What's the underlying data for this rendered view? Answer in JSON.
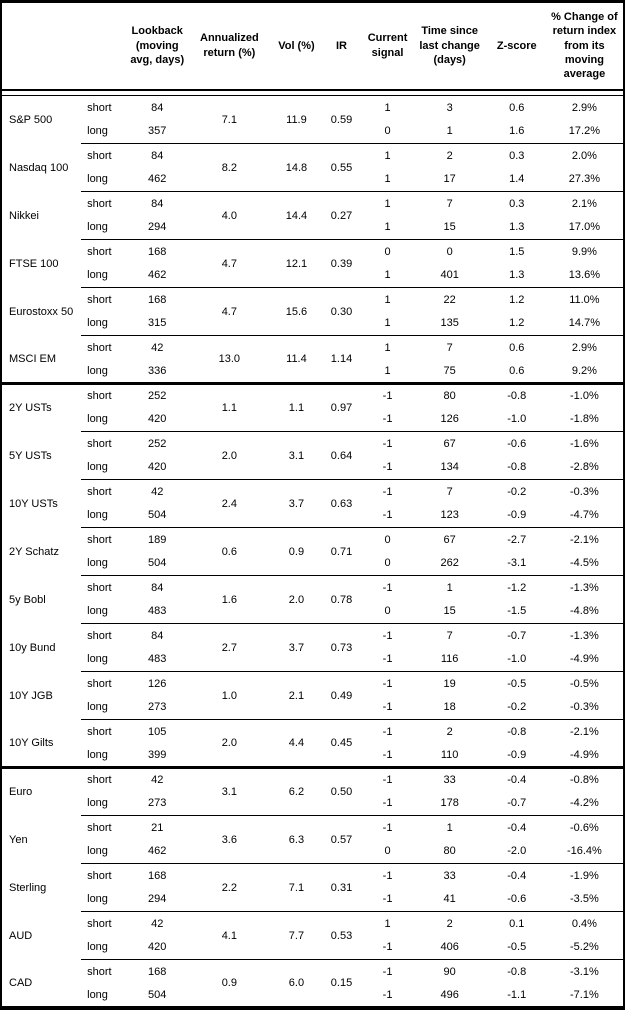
{
  "chart_data": {
    "type": "table",
    "columns": [
      "",
      "",
      "Lookback (moving avg, days)",
      "Annualized return (%)",
      "Vol (%)",
      "IR",
      "Current signal",
      "Time since last change (days)",
      "Z-score",
      "% Change of return index from its moving average"
    ],
    "sections": [
      {
        "assets": [
          {
            "name": "S&P 500",
            "annualized_return": "7.1",
            "vol": "11.9",
            "ir": "0.59",
            "rows": [
              {
                "horizon": "short",
                "lookback": "84",
                "signal": "1",
                "time_since_change": "3",
                "z_score": "0.6",
                "pct_change": "2.9%"
              },
              {
                "horizon": "long",
                "lookback": "357",
                "signal": "0",
                "time_since_change": "1",
                "z_score": "1.6",
                "pct_change": "17.2%"
              }
            ]
          },
          {
            "name": "Nasdaq 100",
            "annualized_return": "8.2",
            "vol": "14.8",
            "ir": "0.55",
            "rows": [
              {
                "horizon": "short",
                "lookback": "84",
                "signal": "1",
                "time_since_change": "2",
                "z_score": "0.3",
                "pct_change": "2.0%"
              },
              {
                "horizon": "long",
                "lookback": "462",
                "signal": "1",
                "time_since_change": "17",
                "z_score": "1.4",
                "pct_change": "27.3%"
              }
            ]
          },
          {
            "name": "Nikkei",
            "annualized_return": "4.0",
            "vol": "14.4",
            "ir": "0.27",
            "rows": [
              {
                "horizon": "short",
                "lookback": "84",
                "signal": "1",
                "time_since_change": "7",
                "z_score": "0.3",
                "pct_change": "2.1%"
              },
              {
                "horizon": "long",
                "lookback": "294",
                "signal": "1",
                "time_since_change": "15",
                "z_score": "1.3",
                "pct_change": "17.0%"
              }
            ]
          },
          {
            "name": "FTSE 100",
            "annualized_return": "4.7",
            "vol": "12.1",
            "ir": "0.39",
            "rows": [
              {
                "horizon": "short",
                "lookback": "168",
                "signal": "0",
                "time_since_change": "0",
                "z_score": "1.5",
                "pct_change": "9.9%"
              },
              {
                "horizon": "long",
                "lookback": "462",
                "signal": "1",
                "time_since_change": "401",
                "z_score": "1.3",
                "pct_change": "13.6%"
              }
            ]
          },
          {
            "name": "Eurostoxx 50",
            "annualized_return": "4.7",
            "vol": "15.6",
            "ir": "0.30",
            "rows": [
              {
                "horizon": "short",
                "lookback": "168",
                "signal": "1",
                "time_since_change": "22",
                "z_score": "1.2",
                "pct_change": "11.0%"
              },
              {
                "horizon": "long",
                "lookback": "315",
                "signal": "1",
                "time_since_change": "135",
                "z_score": "1.2",
                "pct_change": "14.7%"
              }
            ]
          },
          {
            "name": "MSCI EM",
            "annualized_return": "13.0",
            "vol": "11.4",
            "ir": "1.14",
            "rows": [
              {
                "horizon": "short",
                "lookback": "42",
                "signal": "1",
                "time_since_change": "7",
                "z_score": "0.6",
                "pct_change": "2.9%"
              },
              {
                "horizon": "long",
                "lookback": "336",
                "signal": "1",
                "time_since_change": "75",
                "z_score": "0.6",
                "pct_change": "9.2%"
              }
            ]
          }
        ]
      },
      {
        "assets": [
          {
            "name": "2Y USTs",
            "annualized_return": "1.1",
            "vol": "1.1",
            "ir": "0.97",
            "rows": [
              {
                "horizon": "short",
                "lookback": "252",
                "signal": "-1",
                "time_since_change": "80",
                "z_score": "-0.8",
                "pct_change": "-1.0%"
              },
              {
                "horizon": "long",
                "lookback": "420",
                "signal": "-1",
                "time_since_change": "126",
                "z_score": "-1.0",
                "pct_change": "-1.8%"
              }
            ]
          },
          {
            "name": "5Y USTs",
            "annualized_return": "2.0",
            "vol": "3.1",
            "ir": "0.64",
            "rows": [
              {
                "horizon": "short",
                "lookback": "252",
                "signal": "-1",
                "time_since_change": "67",
                "z_score": "-0.6",
                "pct_change": "-1.6%"
              },
              {
                "horizon": "long",
                "lookback": "420",
                "signal": "-1",
                "time_since_change": "134",
                "z_score": "-0.8",
                "pct_change": "-2.8%"
              }
            ]
          },
          {
            "name": "10Y USTs",
            "annualized_return": "2.4",
            "vol": "3.7",
            "ir": "0.63",
            "rows": [
              {
                "horizon": "short",
                "lookback": "42",
                "signal": "-1",
                "time_since_change": "7",
                "z_score": "-0.2",
                "pct_change": "-0.3%"
              },
              {
                "horizon": "long",
                "lookback": "504",
                "signal": "-1",
                "time_since_change": "123",
                "z_score": "-0.9",
                "pct_change": "-4.7%"
              }
            ]
          },
          {
            "name": "2Y Schatz",
            "annualized_return": "0.6",
            "vol": "0.9",
            "ir": "0.71",
            "rows": [
              {
                "horizon": "short",
                "lookback": "189",
                "signal": "0",
                "time_since_change": "67",
                "z_score": "-2.7",
                "pct_change": "-2.1%"
              },
              {
                "horizon": "long",
                "lookback": "504",
                "signal": "0",
                "time_since_change": "262",
                "z_score": "-3.1",
                "pct_change": "-4.5%"
              }
            ]
          },
          {
            "name": "5y Bobl",
            "annualized_return": "1.6",
            "vol": "2.0",
            "ir": "0.78",
            "rows": [
              {
                "horizon": "short",
                "lookback": "84",
                "signal": "-1",
                "time_since_change": "1",
                "z_score": "-1.2",
                "pct_change": "-1.3%"
              },
              {
                "horizon": "long",
                "lookback": "483",
                "signal": "0",
                "time_since_change": "15",
                "z_score": "-1.5",
                "pct_change": "-4.8%"
              }
            ]
          },
          {
            "name": "10y Bund",
            "annualized_return": "2.7",
            "vol": "3.7",
            "ir": "0.73",
            "rows": [
              {
                "horizon": "short",
                "lookback": "84",
                "signal": "-1",
                "time_since_change": "7",
                "z_score": "-0.7",
                "pct_change": "-1.3%"
              },
              {
                "horizon": "long",
                "lookback": "483",
                "signal": "-1",
                "time_since_change": "116",
                "z_score": "-1.0",
                "pct_change": "-4.9%"
              }
            ]
          },
          {
            "name": "10Y JGB",
            "annualized_return": "1.0",
            "vol": "2.1",
            "ir": "0.49",
            "rows": [
              {
                "horizon": "short",
                "lookback": "126",
                "signal": "-1",
                "time_since_change": "19",
                "z_score": "-0.5",
                "pct_change": "-0.5%"
              },
              {
                "horizon": "long",
                "lookback": "273",
                "signal": "-1",
                "time_since_change": "18",
                "z_score": "-0.2",
                "pct_change": "-0.3%"
              }
            ]
          },
          {
            "name": "10Y Gilts",
            "annualized_return": "2.0",
            "vol": "4.4",
            "ir": "0.45",
            "rows": [
              {
                "horizon": "short",
                "lookback": "105",
                "signal": "-1",
                "time_since_change": "2",
                "z_score": "-0.8",
                "pct_change": "-2.1%"
              },
              {
                "horizon": "long",
                "lookback": "399",
                "signal": "-1",
                "time_since_change": "110",
                "z_score": "-0.9",
                "pct_change": "-4.9%"
              }
            ]
          }
        ]
      },
      {
        "assets": [
          {
            "name": "Euro",
            "annualized_return": "3.1",
            "vol": "6.2",
            "ir": "0.50",
            "rows": [
              {
                "horizon": "short",
                "lookback": "42",
                "signal": "-1",
                "time_since_change": "33",
                "z_score": "-0.4",
                "pct_change": "-0.8%"
              },
              {
                "horizon": "long",
                "lookback": "273",
                "signal": "-1",
                "time_since_change": "178",
                "z_score": "-0.7",
                "pct_change": "-4.2%"
              }
            ]
          },
          {
            "name": "Yen",
            "annualized_return": "3.6",
            "vol": "6.3",
            "ir": "0.57",
            "rows": [
              {
                "horizon": "short",
                "lookback": "21",
                "signal": "-1",
                "time_since_change": "1",
                "z_score": "-0.4",
                "pct_change": "-0.6%"
              },
              {
                "horizon": "long",
                "lookback": "462",
                "signal": "0",
                "time_since_change": "80",
                "z_score": "-2.0",
                "pct_change": "-16.4%"
              }
            ]
          },
          {
            "name": "Sterling",
            "annualized_return": "2.2",
            "vol": "7.1",
            "ir": "0.31",
            "rows": [
              {
                "horizon": "short",
                "lookback": "168",
                "signal": "-1",
                "time_since_change": "33",
                "z_score": "-0.4",
                "pct_change": "-1.9%"
              },
              {
                "horizon": "long",
                "lookback": "294",
                "signal": "-1",
                "time_since_change": "41",
                "z_score": "-0.6",
                "pct_change": "-3.5%"
              }
            ]
          },
          {
            "name": "AUD",
            "annualized_return": "4.1",
            "vol": "7.7",
            "ir": "0.53",
            "rows": [
              {
                "horizon": "short",
                "lookback": "42",
                "signal": "1",
                "time_since_change": "2",
                "z_score": "0.1",
                "pct_change": "0.4%"
              },
              {
                "horizon": "long",
                "lookback": "420",
                "signal": "-1",
                "time_since_change": "406",
                "z_score": "-0.5",
                "pct_change": "-5.2%"
              }
            ]
          },
          {
            "name": "CAD",
            "annualized_return": "0.9",
            "vol": "6.0",
            "ir": "0.15",
            "rows": [
              {
                "horizon": "short",
                "lookback": "168",
                "signal": "-1",
                "time_since_change": "90",
                "z_score": "-0.8",
                "pct_change": "-3.1%"
              },
              {
                "horizon": "long",
                "lookback": "504",
                "signal": "-1",
                "time_since_change": "496",
                "z_score": "-1.1",
                "pct_change": "-7.1%"
              }
            ]
          }
        ]
      }
    ]
  }
}
